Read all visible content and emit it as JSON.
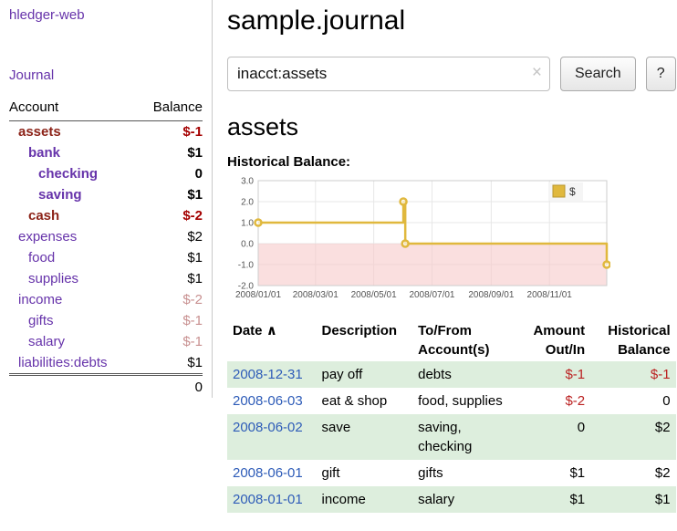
{
  "app": {
    "title": "hledger-web"
  },
  "sidebar": {
    "nav": {
      "journal": "Journal"
    },
    "accounts_table": {
      "col_account": "Account",
      "col_balance": "Balance",
      "rows": [
        {
          "name": "assets",
          "balance": "$-1"
        },
        {
          "name": "bank",
          "balance": "$1"
        },
        {
          "name": "checking",
          "balance": "0"
        },
        {
          "name": "saving",
          "balance": "$1"
        },
        {
          "name": "cash",
          "balance": "$-2"
        },
        {
          "name": "expenses",
          "balance": "$2"
        },
        {
          "name": "food",
          "balance": "$1"
        },
        {
          "name": "supplies",
          "balance": "$1"
        },
        {
          "name": "income",
          "balance": "$-2"
        },
        {
          "name": "gifts",
          "balance": "$-1"
        },
        {
          "name": "salary",
          "balance": "$-1"
        },
        {
          "name": "liabilities:debts",
          "balance": "$1"
        }
      ],
      "total": "0"
    }
  },
  "header": {
    "title": "sample.journal"
  },
  "search": {
    "query": "inacct:assets",
    "clear_icon": "×",
    "search_button": "Search",
    "help_button": "?"
  },
  "account_page": {
    "heading": "assets",
    "chart_title": "Historical Balance:"
  },
  "chart_data": {
    "type": "line",
    "title": "Historical Balance:",
    "style": "step",
    "x_type": "date",
    "xlim": [
      "2008-01-01",
      "2008-12-31"
    ],
    "ylim": [
      -2,
      3
    ],
    "yticks": [
      3,
      2,
      1,
      0,
      -1,
      -2
    ],
    "xticks": [
      {
        "value": "2008-01-01",
        "label": "2008/01/01"
      },
      {
        "value": "2008-03-01",
        "label": "2008/03/01"
      },
      {
        "value": "2008-05-01",
        "label": "2008/05/01"
      },
      {
        "value": "2008-07-01",
        "label": "2008/07/01"
      },
      {
        "value": "2008-09-01",
        "label": "2008/09/01"
      },
      {
        "value": "2008-11-01",
        "label": "2008/11/01"
      }
    ],
    "series": [
      {
        "name": "$",
        "color": "#e0b83d",
        "points": [
          {
            "date": "2008-01-01",
            "value": 1
          },
          {
            "date": "2008-06-01",
            "value": 2
          },
          {
            "date": "2008-06-03",
            "value": 0
          },
          {
            "date": "2008-12-31",
            "value": -1
          }
        ]
      }
    ],
    "negative_region_color": "#f6caca",
    "grid": true,
    "legend_position": "top-right"
  },
  "register": {
    "headers": {
      "date": "Date",
      "sort_indicator": "∧",
      "description": "Description",
      "tofrom_line1": "To/From",
      "tofrom_line2": "Account(s)",
      "amount_line1": "Amount",
      "amount_line2": "Out/In",
      "balance_line1": "Historical",
      "balance_line2": "Balance"
    },
    "rows": [
      {
        "date": "2008-12-31",
        "description": "pay off",
        "accounts": "debts",
        "amount": "$-1",
        "balance": "$-1",
        "amount_negative": true,
        "balance_negative": true
      },
      {
        "date": "2008-06-03",
        "description": "eat & shop",
        "accounts": "food, supplies",
        "amount": "$-2",
        "balance": "0",
        "amount_negative": true,
        "balance_negative": false
      },
      {
        "date": "2008-06-02",
        "description": "save",
        "accounts": "saving, checking",
        "amount": "0",
        "balance": "$2",
        "amount_negative": false,
        "balance_negative": false
      },
      {
        "date": "2008-06-01",
        "description": "gift",
        "accounts": "gifts",
        "amount": "$1",
        "balance": "$2",
        "amount_negative": false,
        "balance_negative": false
      },
      {
        "date": "2008-01-01",
        "description": "income",
        "accounts": "salary",
        "amount": "$1",
        "balance": "$1",
        "amount_negative": false,
        "balance_negative": false
      }
    ]
  },
  "colors": {
    "link_purple": "#6633aa",
    "negative_balance_dark": "#a40000",
    "negative_balance_soft": "#c89090",
    "negative_account_name": "#8c2318",
    "date_link_blue": "#2e5cb8",
    "row_green": "#ddeedd",
    "chart_line_gold": "#e0b83d",
    "negative_region_pink": "#f6caca"
  }
}
